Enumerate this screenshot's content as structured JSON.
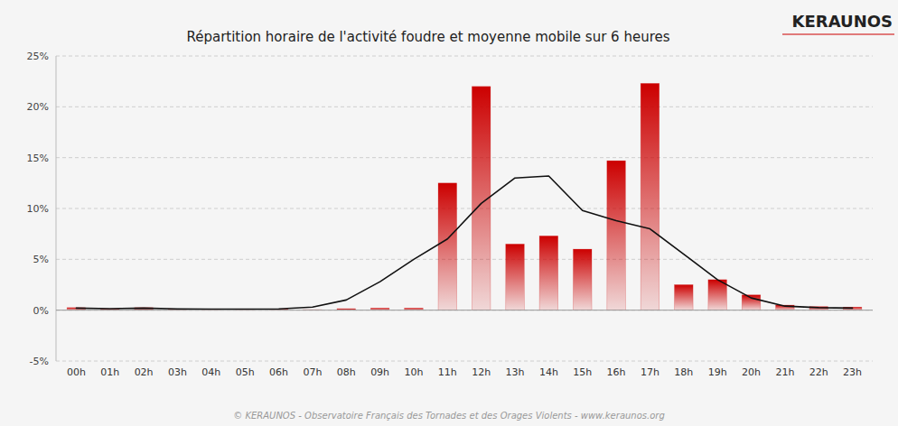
{
  "chart_data": {
    "type": "bar",
    "title": "Répartition horaire de l'activité foudre et moyenne mobile sur 6 heures",
    "categories": [
      "00h",
      "01h",
      "02h",
      "03h",
      "04h",
      "05h",
      "06h",
      "07h",
      "08h",
      "09h",
      "10h",
      "11h",
      "12h",
      "13h",
      "14h",
      "15h",
      "16h",
      "17h",
      "18h",
      "19h",
      "20h",
      "21h",
      "22h",
      "23h"
    ],
    "series": [
      {
        "type": "bar",
        "color": "#cc0000",
        "values": [
          0.25,
          0.1,
          0.25,
          0.1,
          0.05,
          0.1,
          0.1,
          0.05,
          0.15,
          0.2,
          0.2,
          12.5,
          22.0,
          6.5,
          7.3,
          6.0,
          14.7,
          22.3,
          2.5,
          3.0,
          1.5,
          0.5,
          0.35,
          0.3
        ]
      },
      {
        "type": "line",
        "color": "#111111",
        "values": [
          0.2,
          0.15,
          0.2,
          0.12,
          0.1,
          0.1,
          0.12,
          0.3,
          1.0,
          2.8,
          5.0,
          7.0,
          10.5,
          13.0,
          13.2,
          9.8,
          8.8,
          8.0,
          5.5,
          3.0,
          1.2,
          0.4,
          0.25,
          0.2
        ]
      }
    ],
    "ylim": [
      -5,
      25
    ],
    "yticks": [
      {
        "value": -5,
        "label": "-5%"
      },
      {
        "value": 0,
        "label": "0%"
      },
      {
        "value": 5,
        "label": "5%"
      },
      {
        "value": 10,
        "label": "10%"
      },
      {
        "value": 15,
        "label": "15%"
      },
      {
        "value": 20,
        "label": "20%"
      },
      {
        "value": 25,
        "label": "25%"
      }
    ],
    "grid": true,
    "annotations": [
      "© KERAUNOS - Observatoire Français des Tornades et des Orages Violents - www.keraunos.org",
      "KERAUNOS"
    ]
  }
}
